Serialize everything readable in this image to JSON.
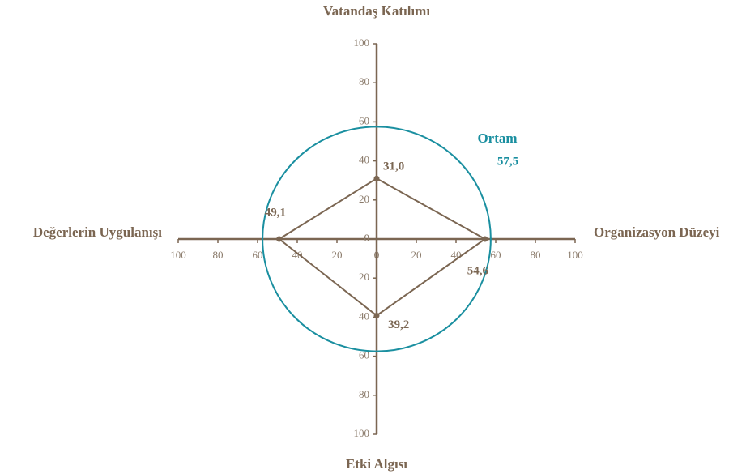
{
  "chart_data": {
    "type": "radar",
    "categories": [
      "Vatandaş Katılımı",
      "Organizasyon Düzeyi",
      "Etki Algısı",
      "Değerlerin Uygulanışı"
    ],
    "values": [
      31.0,
      54.6,
      39.2,
      49.1
    ],
    "value_labels": [
      "31,0",
      "54,6",
      "39,2",
      "49,1"
    ],
    "color": "#7b6652",
    "lim": [
      0,
      100
    ],
    "ticks": [
      0,
      20,
      40,
      60,
      80,
      100
    ],
    "reference": {
      "name": "Ortam",
      "value": 57.5,
      "value_label": "57,5",
      "color": "#1a8fa0"
    }
  }
}
